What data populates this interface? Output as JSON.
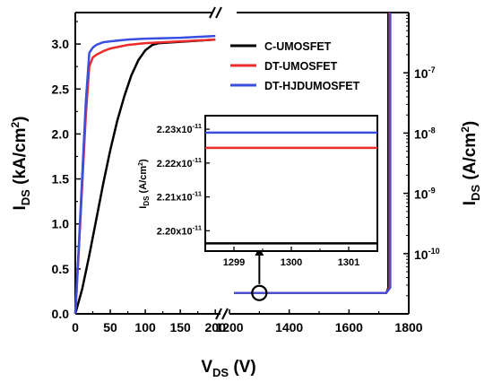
{
  "chart_data": {
    "type": "line",
    "colors": {
      "C-UMOSFET": "#000000",
      "DT-UMOSFET": "#ee2b2b",
      "DT-HJDUMOSFET": "#3a4fe0"
    },
    "left_panel": {
      "x_range": [
        0,
        210
      ],
      "x_ticks": [
        "0",
        "50",
        "100",
        "150",
        "200"
      ],
      "y_range": [
        0,
        3.35
      ],
      "y_ticks": [
        "0.0",
        "0.5",
        "1.0",
        "1.5",
        "2.0",
        "2.5",
        "3.0"
      ],
      "ylabel_main": "I",
      "ylabel_sub": "DS",
      "ylabel_unit": " (kA/cm",
      "ylabel_sup": "2",
      "ylabel_close": ")"
    },
    "right_panel": {
      "x_range": [
        1200,
        1800
      ],
      "x_ticks": [
        "1200",
        "1400",
        "1600",
        "1800"
      ],
      "y_scale": "log",
      "y_range": [
        1e-11,
        1e-06
      ],
      "y_ticks": [
        {
          "value": 1e-10,
          "base": "10",
          "exp": "-10"
        },
        {
          "value": 1e-09,
          "base": "10",
          "exp": "-9"
        },
        {
          "value": 1e-08,
          "base": "10",
          "exp": "-8"
        },
        {
          "value": 1e-07,
          "base": "10",
          "exp": "-7"
        }
      ],
      "ylabel_main": "I",
      "ylabel_sub": "DS",
      "ylabel_unit": " (A/cm",
      "ylabel_sup": "2",
      "ylabel_close": ")",
      "breakdown_voltage": 1735,
      "leakage_level": 2.22e-11
    },
    "xlabel_main": "V",
    "xlabel_sub": "DS",
    "xlabel_unit": " (V)",
    "series": [
      {
        "name": "C-UMOSFET",
        "x": [
          0,
          10,
          20,
          30,
          40,
          50,
          60,
          70,
          80,
          90,
          100,
          110,
          120,
          140,
          160,
          180,
          200
        ],
        "y": [
          0,
          0.28,
          0.65,
          1.05,
          1.45,
          1.82,
          2.15,
          2.42,
          2.65,
          2.82,
          2.93,
          2.99,
          3.01,
          3.02,
          3.03,
          3.04,
          3.05
        ]
      },
      {
        "name": "DT-UMOSFET",
        "x": [
          0,
          5,
          10,
          15,
          20,
          25,
          30,
          40,
          50,
          75,
          100,
          150,
          200
        ],
        "y": [
          0,
          0.7,
          1.45,
          2.2,
          2.75,
          2.85,
          2.88,
          2.92,
          2.95,
          2.99,
          3.01,
          3.03,
          3.05
        ]
      },
      {
        "name": "DT-HJDUMOSFET",
        "x": [
          0,
          5,
          10,
          15,
          20,
          25,
          30,
          40,
          50,
          75,
          100,
          150,
          200
        ],
        "y": [
          0,
          0.75,
          1.55,
          2.35,
          2.9,
          2.96,
          2.99,
          3.02,
          3.03,
          3.05,
          3.06,
          3.07,
          3.09
        ]
      }
    ],
    "inset": {
      "x_range": [
        1298.5,
        1301.5
      ],
      "x_ticks": [
        "1299",
        "1300",
        "1301"
      ],
      "y_range": [
        2.194e-11,
        2.234e-11
      ],
      "y_ticks": [
        {
          "value": 2.2e-11,
          "mant": "2.20x10",
          "exp": "-11"
        },
        {
          "value": 2.21e-11,
          "mant": "2.21x10",
          "exp": "-11"
        },
        {
          "value": 2.22e-11,
          "mant": "2.22x10",
          "exp": "-11"
        },
        {
          "value": 2.23e-11,
          "mant": "2.23x10",
          "exp": "-11"
        }
      ],
      "ylabel_main": "I",
      "ylabel_sub": "DS",
      "ylabel_unit": " (A/cm",
      "ylabel_sup": "2",
      "ylabel_close": ")",
      "levels": [
        {
          "name": "C-UMOSFET",
          "value": 2.1963e-11
        },
        {
          "name": "DT-UMOSFET",
          "value": 2.2245e-11
        },
        {
          "name": "DT-HJDUMOSFET",
          "value": 2.229e-11
        }
      ]
    },
    "legend_position": "upper-right of left panel"
  }
}
